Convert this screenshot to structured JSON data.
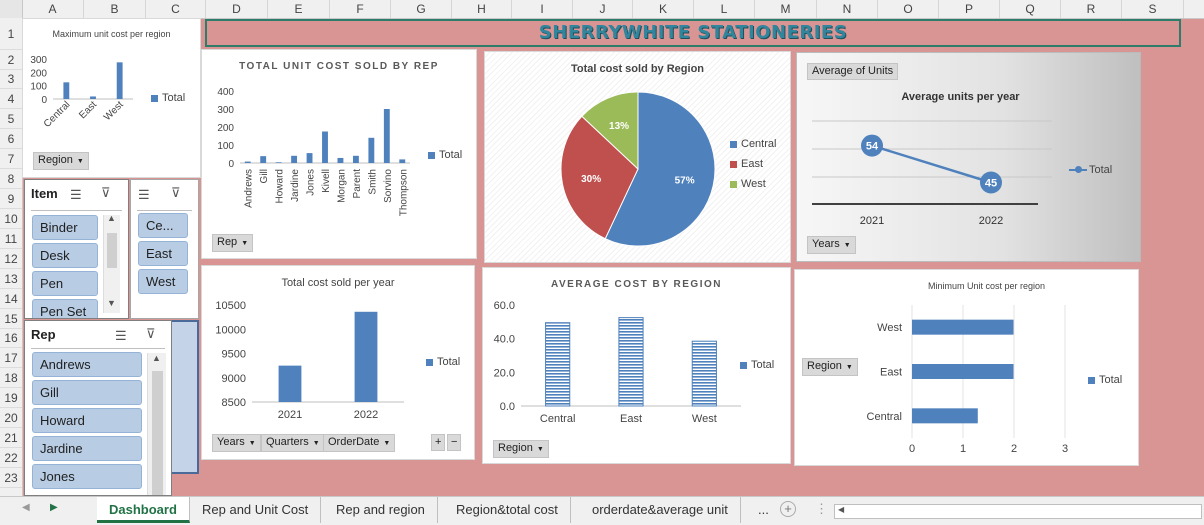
{
  "columns": [
    "A",
    "B",
    "C",
    "D",
    "E",
    "F",
    "G",
    "H",
    "I",
    "J",
    "K",
    "L",
    "M",
    "N",
    "O",
    "P",
    "Q",
    "R",
    "S"
  ],
  "rows": [
    "1",
    "2",
    "3",
    "4",
    "5",
    "6",
    "7",
    "8",
    "9",
    "10",
    "11",
    "12",
    "13",
    "14",
    "15",
    "16",
    "17",
    "18",
    "19",
    "20",
    "21",
    "22",
    "23"
  ],
  "banner": {
    "title": "SHERRYWHITE STATIONERIES"
  },
  "max_chart": {
    "title": "Maximum unit cost per region",
    "filter": "Region",
    "legend": "Total",
    "chart_data": {
      "type": "bar",
      "categories": [
        "Central",
        "East",
        "West"
      ],
      "values": [
        125,
        19,
        275
      ],
      "yticks": [
        "0",
        "100",
        "200",
        "300"
      ],
      "ylim": [
        0,
        300
      ],
      "legend": "Total"
    }
  },
  "rep_chart": {
    "title": "TOTAL UNIT COST SOLD BY REP",
    "filter": "Rep",
    "legend": "Total",
    "chart_data": {
      "type": "bar",
      "categories": [
        "Andrews",
        "Gill",
        "Howard",
        "Jardine",
        "Jones",
        "Kivell",
        "Morgan",
        "Parent",
        "Smith",
        "Sorvino",
        "Thompson"
      ],
      "values": [
        8,
        38,
        4,
        40,
        55,
        175,
        28,
        40,
        140,
        300,
        20
      ],
      "yticks": [
        "0",
        "100",
        "200",
        "300",
        "400"
      ],
      "ylim": [
        0,
        400
      ],
      "legend": "Total"
    }
  },
  "pie_chart": {
    "title": "Total cost sold by Region",
    "chart_data": {
      "type": "pie",
      "categories": [
        "Central",
        "East",
        "West"
      ],
      "values": [
        57,
        30,
        13
      ],
      "labels": [
        "57%",
        "30%",
        "13%"
      ],
      "colors": [
        "#4f81bd",
        "#c0504d",
        "#9bbb59"
      ]
    }
  },
  "avg_units_chart": {
    "filter_top": "Average of Units",
    "title": "Average units per year",
    "filter": "Years",
    "legend": "Total",
    "chart_data": {
      "type": "line",
      "x": [
        "2021",
        "2022"
      ],
      "values": [
        54,
        45
      ],
      "labels": [
        "54",
        "45"
      ],
      "legend": "Total"
    }
  },
  "year_chart": {
    "title": "Total cost sold per year",
    "filters": [
      "Years",
      "Quarters",
      "OrderDate"
    ],
    "expand": "+",
    "collapse": "−",
    "legend": "Total",
    "chart_data": {
      "type": "bar",
      "categories": [
        "2021",
        "2022"
      ],
      "values": [
        9250,
        10360
      ],
      "yticks": [
        "8500",
        "9000",
        "9500",
        "10000",
        "10500"
      ],
      "ylim": [
        8500,
        10500
      ],
      "legend": "Total"
    }
  },
  "avg_cost_chart": {
    "title": "AVERAGE COST BY REGION",
    "filter": "Region",
    "legend": "Total",
    "chart_data": {
      "type": "bar",
      "categories": [
        "Central",
        "East",
        "West"
      ],
      "values": [
        49.5,
        52.5,
        38.5
      ],
      "yticks": [
        "0.0",
        "20.0",
        "40.0",
        "60.0"
      ],
      "ylim": [
        0,
        60
      ],
      "legend": "Total"
    }
  },
  "min_chart": {
    "title": "Minimum Unit cost per region",
    "filter": "Region",
    "legend": "Total",
    "chart_data": {
      "type": "bar",
      "orientation": "horizontal",
      "categories": [
        "Central",
        "East",
        "West"
      ],
      "values": [
        1.29,
        1.99,
        1.99
      ],
      "xticks": [
        "0",
        "1",
        "2",
        "3"
      ],
      "xlim": [
        0,
        3
      ],
      "legend": "Total"
    }
  },
  "item_slicer": {
    "title": "Item",
    "items": [
      "Binder",
      "Desk",
      "Pen",
      "Pen Set"
    ]
  },
  "region_slicer": {
    "items": [
      "Ce...",
      "East",
      "West"
    ]
  },
  "rep_slicer": {
    "title": "Rep",
    "items": [
      "Andrews",
      "Gill",
      "Howard",
      "Jardine",
      "Jones"
    ]
  },
  "tabs": [
    "Dashboard",
    "Rep and Unit Cost",
    "Rep and region",
    "Region&total cost",
    "orderdate&average unit",
    "..."
  ],
  "colors": {
    "bar": "#4f81bd",
    "banner": "#d99594",
    "accent_green": "#217346",
    "banner_text": "#31859c"
  }
}
